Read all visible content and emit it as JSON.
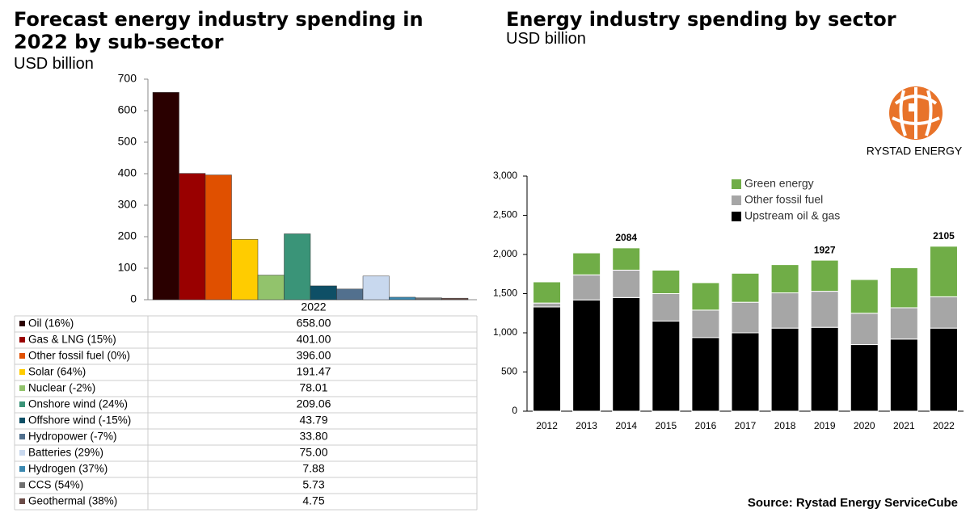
{
  "chart_data": [
    {
      "type": "bar",
      "title": "Forecast energy industry spending in 2022 by sub-sector",
      "subtitle": "USD billion",
      "categories": [
        "2022"
      ],
      "ylim": [
        0,
        700
      ],
      "yticks": [
        0,
        100,
        200,
        300,
        400,
        500,
        600,
        700
      ],
      "series": [
        {
          "name": "Oil (16%)",
          "color": "#2a0000",
          "values": [
            658
          ],
          "value_labels": [
            "658.00"
          ]
        },
        {
          "name": "Gas & LNG (15%)",
          "color": "#990000",
          "values": [
            401
          ],
          "value_labels": [
            "401.00"
          ]
        },
        {
          "name": "Other fossil fuel (0%)",
          "color": "#e05000",
          "values": [
            396
          ],
          "value_labels": [
            "396.00"
          ]
        },
        {
          "name": "Solar (64%)",
          "color": "#ffcc00",
          "values": [
            191.47
          ],
          "value_labels": [
            "191.47"
          ]
        },
        {
          "name": "Nuclear (-2%)",
          "color": "#92c36c",
          "values": [
            78.01
          ],
          "value_labels": [
            "78.01"
          ]
        },
        {
          "name": "Onshore wind (24%)",
          "color": "#3a9478",
          "values": [
            209.06
          ],
          "value_labels": [
            "209.06"
          ]
        },
        {
          "name": "Offshore wind (-15%)",
          "color": "#0e4f66",
          "values": [
            43.79
          ],
          "value_labels": [
            "43.79"
          ]
        },
        {
          "name": "Hydropower (-7%)",
          "color": "#52708e",
          "values": [
            33.8
          ],
          "value_labels": [
            "33.80"
          ]
        },
        {
          "name": "Batteries (29%)",
          "color": "#c8d8ee",
          "values": [
            75
          ],
          "value_labels": [
            "75.00"
          ]
        },
        {
          "name": "Hydrogen (37%)",
          "color": "#3b88b0",
          "values": [
            7.88
          ],
          "value_labels": [
            "7.88"
          ]
        },
        {
          "name": "CCS (54%)",
          "color": "#707070",
          "values": [
            5.73
          ],
          "value_labels": [
            "5.73"
          ]
        },
        {
          "name": "Geothermal (38%)",
          "color": "#6b4c48",
          "values": [
            4.75
          ],
          "value_labels": [
            "4.75"
          ]
        }
      ]
    },
    {
      "type": "stacked_bar",
      "title": "Energy industry spending by sector",
      "subtitle": "USD billion",
      "categories": [
        "2012",
        "2013",
        "2014",
        "2015",
        "2016",
        "2017",
        "2018",
        "2019",
        "2020",
        "2021",
        "2022"
      ],
      "ylim": [
        0,
        3000
      ],
      "yticks": [
        0,
        500,
        {
          "value": 1000,
          "label": "1,000"
        },
        {
          "value": 1500,
          "label": "1,500"
        },
        {
          "value": 2000,
          "label": "2,000"
        },
        {
          "value": 2500,
          "label": "2,500"
        },
        {
          "value": 3000,
          "label": "3,000"
        }
      ],
      "series": [
        {
          "name": "Upstream oil & gas",
          "color": "#000000",
          "values": [
            1330,
            1420,
            1450,
            1150,
            940,
            1000,
            1060,
            1070,
            850,
            920,
            1060
          ]
        },
        {
          "name": "Other fossil fuel",
          "color": "#a6a6a6",
          "values": [
            50,
            320,
            350,
            350,
            350,
            390,
            450,
            460,
            400,
            400,
            400
          ]
        },
        {
          "name": "Green energy",
          "color": "#70ad47",
          "values": [
            270,
            280,
            284,
            300,
            350,
            370,
            360,
            397,
            430,
            510,
            645
          ]
        }
      ],
      "totals": [
        null,
        null,
        2084,
        null,
        null,
        null,
        null,
        1927,
        null,
        null,
        2105
      ]
    }
  ],
  "logo": "RYSTAD ENERGY",
  "source": "Source: Rystad Energy ServiceCube"
}
